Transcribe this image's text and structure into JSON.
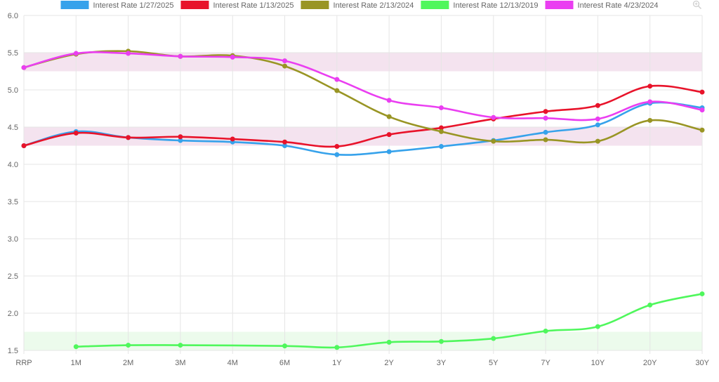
{
  "chart_data": {
    "type": "line",
    "categories": [
      "RRP",
      "1M",
      "2M",
      "3M",
      "4M",
      "6M",
      "1Y",
      "2Y",
      "3Y",
      "5Y",
      "7Y",
      "10Y",
      "20Y",
      "30Y"
    ],
    "ylim": [
      1.5,
      6.0
    ],
    "yticks": [
      "1.5",
      "2.0",
      "2.5",
      "3.0",
      "3.5",
      "4.0",
      "4.5",
      "5.0",
      "5.5",
      "6.0"
    ],
    "ytick_values": [
      1.5,
      2.0,
      2.5,
      3.0,
      3.5,
      4.0,
      4.5,
      5.0,
      5.5,
      6.0
    ],
    "grid": true,
    "legend_position": "top",
    "bands": [
      {
        "from": 5.25,
        "to": 5.5,
        "color": "#f4e3ef"
      },
      {
        "from": 4.25,
        "to": 4.5,
        "color": "#f4e3ef"
      },
      {
        "from": 1.5,
        "to": 1.75,
        "color": "#ecfbec"
      }
    ],
    "series": [
      {
        "name": "Interest Rate 1/27/2025",
        "color": "#36a2eb",
        "values": [
          4.25,
          4.44,
          4.36,
          4.32,
          4.3,
          4.25,
          4.13,
          4.17,
          4.24,
          4.32,
          4.43,
          4.53,
          4.82,
          4.76
        ]
      },
      {
        "name": "Interest Rate 1/13/2025",
        "color": "#e8132a",
        "values": [
          4.25,
          4.42,
          4.36,
          4.37,
          4.34,
          4.3,
          4.24,
          4.4,
          4.49,
          4.61,
          4.71,
          4.79,
          5.05,
          4.97
        ]
      },
      {
        "name": "Interest Rate 2/13/2024",
        "color": "#999524",
        "values": [
          5.3,
          5.48,
          5.52,
          5.45,
          5.46,
          5.32,
          4.99,
          4.64,
          4.44,
          4.31,
          4.33,
          4.31,
          4.59,
          4.46
        ]
      },
      {
        "name": "Interest Rate 12/13/2019",
        "color": "#4ff75c",
        "values": [
          null,
          1.55,
          1.57,
          1.57,
          null,
          1.56,
          1.54,
          1.61,
          1.62,
          1.66,
          1.76,
          1.82,
          2.11,
          2.26
        ]
      },
      {
        "name": "Interest Rate 4/23/2024",
        "color": "#ea3ef1",
        "values": [
          5.3,
          5.49,
          5.49,
          5.45,
          5.44,
          5.39,
          5.14,
          4.86,
          4.76,
          4.63,
          4.62,
          4.61,
          4.84,
          4.73
        ]
      }
    ]
  },
  "icons": {
    "zoom": "zoom-icon"
  }
}
